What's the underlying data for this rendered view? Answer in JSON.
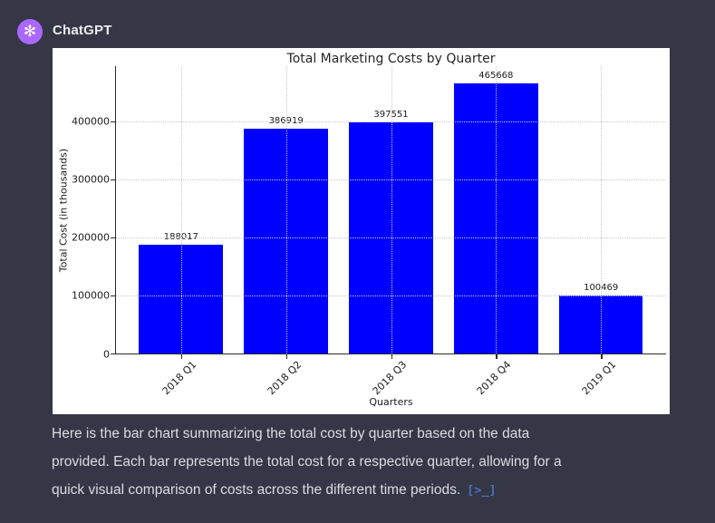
{
  "header": {
    "app_name": "ChatGPT"
  },
  "chart_data": {
    "type": "bar",
    "title": "Total Marketing Costs by Quarter",
    "xlabel": "Quarters",
    "ylabel": "Total Cost (in thousands)",
    "categories": [
      "2018 Q1",
      "2018 Q2",
      "2018 Q3",
      "2018 Q4",
      "2019 Q1"
    ],
    "values": [
      188017,
      386919,
      397551,
      465668,
      100469
    ],
    "bar_labels": [
      188017,
      386919,
      397551,
      465668,
      100469
    ],
    "bar_color": "#0000ff",
    "ylim": [
      0,
      495000
    ],
    "yticks": [
      0,
      100000,
      200000,
      300000,
      400000
    ],
    "grid": "dotted, both axes, drawn over bars",
    "legend": "none"
  },
  "message": {
    "text": "Here is the bar chart summarizing the total cost by quarter based on the data provided. Each bar represents the total cost for a respective quarter, allowing for a quick visual comparison of costs across the different time periods.",
    "lines": [
      "Here is the bar chart summarizing the total cost by quarter based on the data",
      "provided. Each bar represents the total cost for a respective quarter, allowing for a",
      "quick visual comparison of costs across the different time periods."
    ],
    "analysis_icon": "[>_]"
  },
  "colors": {
    "page_background": "#353746",
    "chart_background": "#ffffff",
    "bar_blue": "#0000ff",
    "logo_purple": "#ab68ff",
    "message_text": "#d9dce3",
    "analysis_chip_blue": "#4a72b8"
  }
}
